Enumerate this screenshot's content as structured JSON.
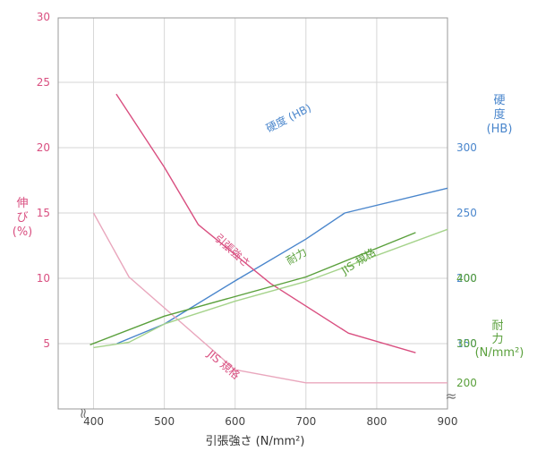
{
  "chart_data": {
    "type": "line",
    "x_axis": {
      "label": "引張強さ (N/mm²)",
      "range": [
        350,
        900
      ],
      "ticks": [
        400,
        500,
        600,
        700,
        800,
        900
      ]
    },
    "axes": {
      "elongation": {
        "label": "伸び(%)",
        "label_lines": [
          "伸",
          "び",
          "(%)"
        ],
        "color": "#d94f80",
        "range": [
          0,
          30
        ],
        "ticks": [
          5,
          10,
          15,
          20,
          25,
          30
        ]
      },
      "hardness": {
        "label": "硬度(HB)",
        "label_lines": [
          "硬",
          "度",
          "(HB)"
        ],
        "color": "#4a86cc",
        "range": [
          100,
          300
        ],
        "ticks": [
          150,
          200,
          250,
          300
        ]
      },
      "fatigue": {
        "label": "耐力(N/mm²)",
        "label_lines": [
          "耐",
          "力",
          "(N/mm²)"
        ],
        "color": "#5aa03c",
        "ticks": [
          200,
          300,
          400
        ]
      }
    },
    "series": [
      {
        "name": "硬度 (HB)",
        "axis": "hardness",
        "color": "#4a86cc",
        "x": [
          433,
          500,
          600,
          700,
          755,
          900
        ],
        "y": [
          150,
          165,
          198,
          230,
          250,
          269
        ]
      },
      {
        "name": "引張強さ",
        "axis": "elongation",
        "color": "#d94f80",
        "x": [
          432,
          500,
          548,
          650,
          760,
          855
        ],
        "y": [
          24.1,
          18.5,
          14.1,
          9.6,
          5.8,
          4.3
        ]
      },
      {
        "name": "JIS 規格",
        "axis": "elongation",
        "color": "#e9a7bd",
        "x": [
          400,
          450,
          600,
          700,
          900
        ],
        "y": [
          15,
          10.1,
          3,
          2,
          2
        ]
      },
      {
        "name": "耐力",
        "axis": "fatigue",
        "color": "#5aa03c",
        "x": [
          395,
          500,
          700,
          855
        ],
        "y": [
          297,
          342,
          402,
          470
        ]
      },
      {
        "name": "JIS 規格",
        "axis": "fatigue",
        "color": "#a5d38b",
        "x": [
          400,
          450,
          500,
          600,
          700,
          900
        ],
        "y": [
          290,
          302,
          330,
          365,
          395,
          475
        ]
      }
    ]
  },
  "annotations": [
    "硬度 (HB)",
    "引張強さ",
    "JIS 規格",
    "耐力",
    "JIS 規格"
  ],
  "break_mark": "≈"
}
